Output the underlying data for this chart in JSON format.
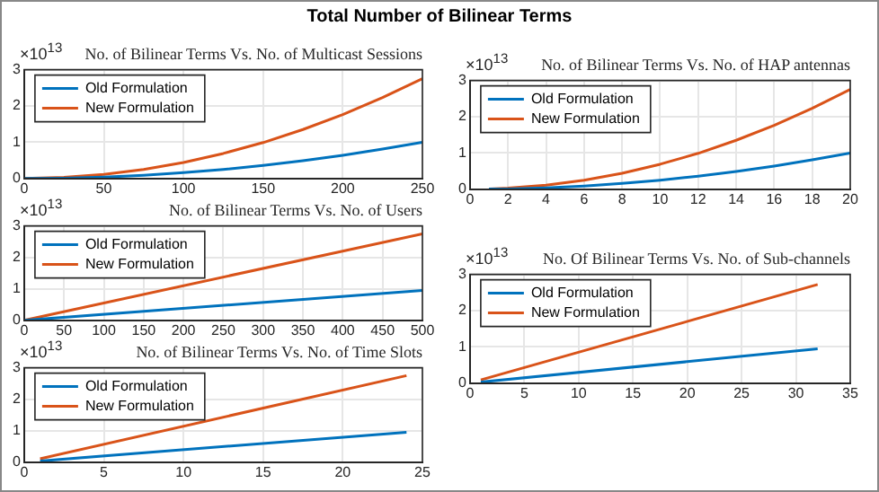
{
  "chart_data": [
    {
      "type": "line",
      "title": "Total Number of Bilinear Terms",
      "subtitle": "No. of Bilinear Terms Vs. No. of Multicast Sessions",
      "annotations": [
        "×10$^{13}$"
      ],
      "x": [
        0,
        25,
        50,
        75,
        100,
        125,
        150,
        175,
        200,
        225,
        250
      ],
      "series": [
        {
          "name": "Old Formulation",
          "color": "#0072bd",
          "values": [
            0,
            0.01,
            0.04,
            0.09,
            0.16,
            0.25,
            0.36,
            0.49,
            0.64,
            0.81,
            1.0
          ]
        },
        {
          "name": "New Formulation",
          "color": "#d95319",
          "values": [
            0,
            0.03,
            0.11,
            0.25,
            0.44,
            0.69,
            0.99,
            1.35,
            1.76,
            2.23,
            2.75
          ]
        }
      ],
      "xlim": [
        0,
        250
      ],
      "xticks": [
        0,
        50,
        100,
        150,
        200,
        250
      ],
      "ylim": [
        0,
        3
      ],
      "yticks": [
        0,
        1,
        2,
        3
      ],
      "grid": true,
      "legend": "top left"
    },
    {
      "type": "line",
      "subtitle": "No. of Bilinear Terms Vs. No. of Users",
      "annotations": [
        "×10$^{13}$"
      ],
      "x": [
        0,
        500
      ],
      "series": [
        {
          "name": "Old Formulation",
          "color": "#0072bd",
          "values": [
            0,
            0.95
          ]
        },
        {
          "name": "New Formulation",
          "color": "#d95319",
          "values": [
            0,
            2.75
          ]
        }
      ],
      "xlim": [
        0,
        500
      ],
      "xticks": [
        0,
        50,
        100,
        150,
        200,
        250,
        300,
        350,
        400,
        450,
        500
      ],
      "ylim": [
        0,
        3
      ],
      "yticks": [
        0,
        1,
        2,
        3
      ],
      "grid": true,
      "legend": "top left"
    },
    {
      "type": "line",
      "subtitle": "No. of Bilinear Terms Vs. No. of Time Slots",
      "annotations": [
        "×10$^{13}$"
      ],
      "x": [
        1,
        24
      ],
      "series": [
        {
          "name": "Old Formulation",
          "color": "#0072bd",
          "values": [
            0.04,
            0.95
          ]
        },
        {
          "name": "New Formulation",
          "color": "#d95319",
          "values": [
            0.11,
            2.75
          ]
        }
      ],
      "xlim": [
        0,
        25
      ],
      "xticks": [
        0,
        5,
        10,
        15,
        20,
        25
      ],
      "ylim": [
        0,
        3
      ],
      "yticks": [
        0,
        1,
        2,
        3
      ],
      "grid": true,
      "legend": "top left"
    },
    {
      "type": "line",
      "subtitle": "No. of Bilinear Terms Vs. No. of HAP antennas",
      "annotations": [
        "×10$^{13}$"
      ],
      "x": [
        1,
        2,
        4,
        6,
        8,
        10,
        12,
        14,
        16,
        18,
        20
      ],
      "series": [
        {
          "name": "Old Formulation",
          "color": "#0072bd",
          "values": [
            0.01,
            0.01,
            0.04,
            0.09,
            0.16,
            0.25,
            0.36,
            0.49,
            0.64,
            0.81,
            1.0
          ]
        },
        {
          "name": "New Formulation",
          "color": "#d95319",
          "values": [
            0.01,
            0.03,
            0.11,
            0.25,
            0.44,
            0.69,
            0.99,
            1.35,
            1.76,
            2.23,
            2.75
          ]
        }
      ],
      "xlim": [
        0,
        20
      ],
      "xticks": [
        0,
        2,
        4,
        6,
        8,
        10,
        12,
        14,
        16,
        18,
        20
      ],
      "ylim": [
        0,
        3
      ],
      "yticks": [
        0,
        1,
        2,
        3
      ],
      "grid": true,
      "legend": "top left"
    },
    {
      "type": "line",
      "subtitle": "No. Of Bilinear Terms Vs. No. of Sub-channels",
      "annotations": [
        "×10$^{13}$"
      ],
      "x": [
        1,
        32
      ],
      "series": [
        {
          "name": "Old Formulation",
          "color": "#0072bd",
          "values": [
            0.03,
            0.95
          ]
        },
        {
          "name": "New Formulation",
          "color": "#d95319",
          "values": [
            0.09,
            2.72
          ]
        }
      ],
      "xlim": [
        0,
        35
      ],
      "xticks": [
        0,
        5,
        10,
        15,
        20,
        25,
        30,
        35
      ],
      "ylim": [
        0,
        3
      ],
      "yticks": [
        0,
        1,
        2,
        3
      ],
      "grid": true,
      "legend": "top left"
    }
  ]
}
